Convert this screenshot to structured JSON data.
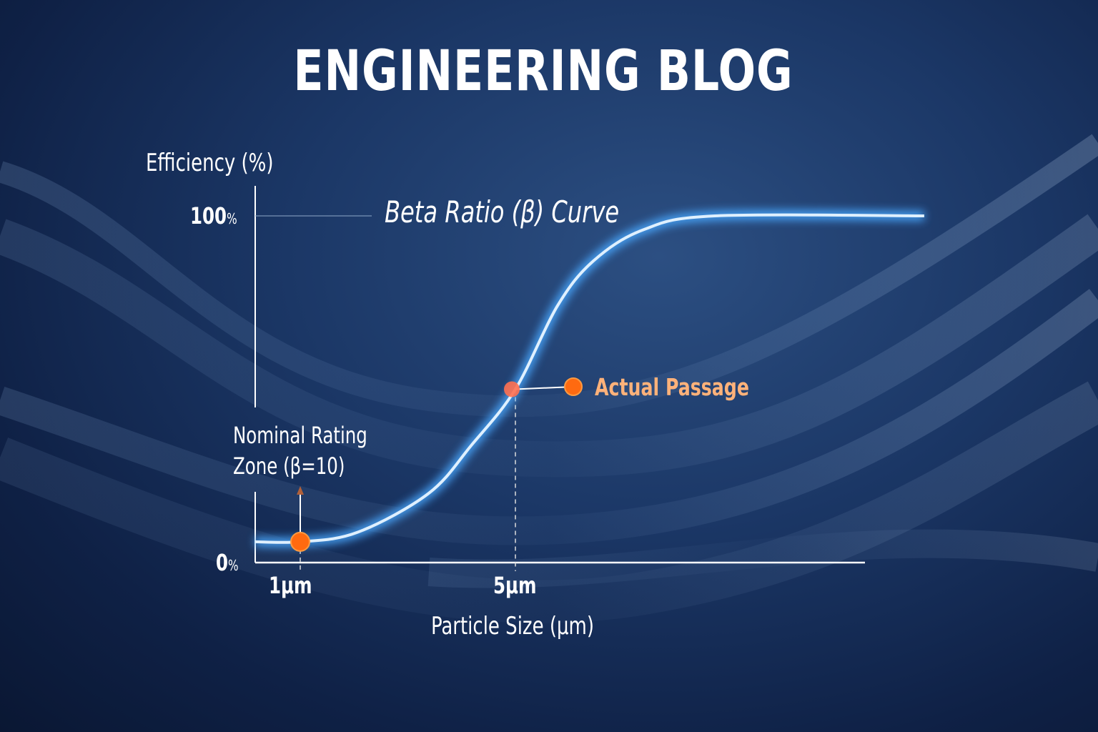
{
  "header": {
    "title": "ENGINEERING BLOG"
  },
  "colors": {
    "curve": "#4aa8ff",
    "marker": "#ff6a10",
    "axis": "#ffffff",
    "annotation_text": "#ffb27a"
  },
  "chart_data": {
    "type": "line",
    "title": "Beta Ratio (β) Curve",
    "xlabel": "Particle Size (μm)",
    "ylabel": "Efficiency (%)",
    "x_ticks": [
      {
        "value": 1,
        "label": "1μm"
      },
      {
        "value": 5,
        "label": "5μm"
      }
    ],
    "y_ticks": [
      {
        "value": 0,
        "label": "0",
        "unit": "%"
      },
      {
        "value": 100,
        "label": "100",
        "unit": "%"
      }
    ],
    "xlim": [
      0.16,
      11.5
    ],
    "ylim": [
      0,
      100
    ],
    "grid": false,
    "series": [
      {
        "x": [
          0.16,
          1,
          2.06,
          3.39,
          4.19,
          5,
          5.78,
          6.45,
          7.38,
          8.71,
          12.6
        ],
        "y": [
          6,
          6,
          8.7,
          20,
          34,
          50,
          74,
          87,
          96,
          100,
          100
        ]
      }
    ],
    "annotations": [
      {
        "label": "Nominal Rating Zone (β=10)",
        "x": 1,
        "y": 6
      },
      {
        "label": "Actual Passage",
        "x": 5,
        "y": 50
      }
    ]
  }
}
